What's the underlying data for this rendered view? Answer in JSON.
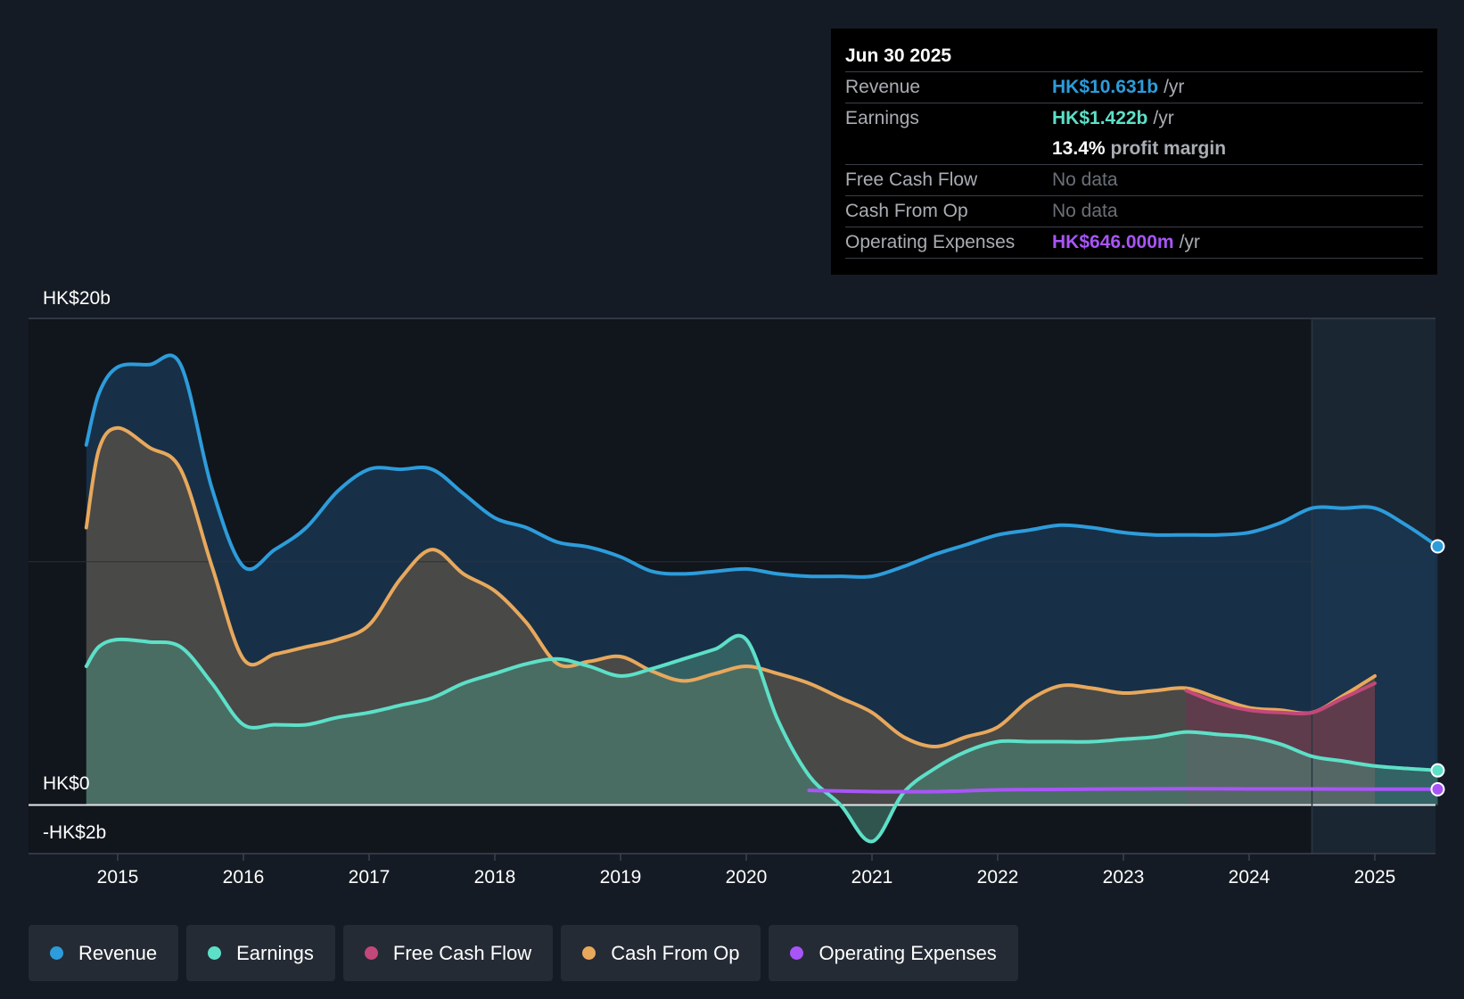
{
  "chart_data": {
    "type": "area",
    "title": "",
    "y_unit": "HK$ billions",
    "ylim": [
      -2,
      20
    ],
    "y_tick_labels": [
      "HK$20b",
      "HK$0",
      "-HK$2b"
    ],
    "x_tick_labels": [
      "2015",
      "2016",
      "2017",
      "2018",
      "2019",
      "2020",
      "2021",
      "2022",
      "2023",
      "2024",
      "2025"
    ],
    "forecast_start": 2024.5,
    "series": [
      {
        "name": "Revenue",
        "color": "#2d9cdb",
        "x": [
          2014.75,
          2014.85,
          2015.0,
          2015.25,
          2015.5,
          2015.75,
          2016.0,
          2016.25,
          2016.5,
          2016.75,
          2017.0,
          2017.25,
          2017.5,
          2017.75,
          2018.0,
          2018.25,
          2018.5,
          2018.75,
          2019.0,
          2019.25,
          2019.5,
          2019.75,
          2020.0,
          2020.25,
          2020.5,
          2020.75,
          2021.0,
          2021.25,
          2021.5,
          2021.75,
          2022.0,
          2022.25,
          2022.5,
          2022.75,
          2023.0,
          2023.25,
          2023.5,
          2023.75,
          2024.0,
          2024.25,
          2024.5,
          2024.75,
          2025.0,
          2025.25,
          2025.5
        ],
        "values": [
          14.8,
          16.9,
          18.0,
          18.1,
          18.1,
          13.0,
          9.8,
          10.5,
          11.4,
          12.9,
          13.8,
          13.8,
          13.8,
          12.8,
          11.8,
          11.4,
          10.8,
          10.6,
          10.2,
          9.6,
          9.5,
          9.6,
          9.7,
          9.5,
          9.4,
          9.4,
          9.4,
          9.8,
          10.3,
          10.7,
          11.1,
          11.3,
          11.5,
          11.4,
          11.2,
          11.1,
          11.1,
          11.1,
          11.2,
          11.6,
          12.2,
          12.2,
          12.2,
          11.5,
          10.631
        ]
      },
      {
        "name": "Earnings",
        "color": "#5de0c8",
        "x": [
          2014.75,
          2014.85,
          2015.0,
          2015.25,
          2015.5,
          2015.75,
          2016.0,
          2016.25,
          2016.5,
          2016.75,
          2017.0,
          2017.25,
          2017.5,
          2017.75,
          2018.0,
          2018.25,
          2018.5,
          2018.75,
          2019.0,
          2019.25,
          2019.5,
          2019.75,
          2020.0,
          2020.25,
          2020.5,
          2020.75,
          2021.0,
          2021.25,
          2021.5,
          2021.75,
          2022.0,
          2022.25,
          2022.5,
          2022.75,
          2023.0,
          2023.25,
          2023.5,
          2023.75,
          2024.0,
          2024.25,
          2024.5,
          2024.75,
          2025.0,
          2025.25,
          2025.5
        ],
        "values": [
          5.7,
          6.5,
          6.8,
          6.7,
          6.5,
          5.0,
          3.3,
          3.3,
          3.3,
          3.6,
          3.8,
          4.1,
          4.4,
          5.0,
          5.4,
          5.8,
          6.0,
          5.7,
          5.3,
          5.6,
          6.0,
          6.4,
          6.8,
          3.5,
          1.2,
          0.0,
          -1.5,
          0.5,
          1.5,
          2.2,
          2.6,
          2.6,
          2.6,
          2.6,
          2.7,
          2.8,
          3.0,
          2.9,
          2.8,
          2.5,
          2.0,
          1.8,
          1.6,
          1.5,
          1.422
        ]
      },
      {
        "name": "Free Cash Flow",
        "color": "#c2487a",
        "x": [
          2023.5,
          2023.75,
          2024.0,
          2024.25,
          2024.5,
          2024.75,
          2025.0
        ],
        "values": [
          4.7,
          4.2,
          3.9,
          3.8,
          3.8,
          4.4,
          5.0
        ]
      },
      {
        "name": "Cash From Op",
        "color": "#e8a85c",
        "x": [
          2014.75,
          2014.85,
          2015.0,
          2015.25,
          2015.5,
          2015.75,
          2016.0,
          2016.25,
          2016.5,
          2016.75,
          2017.0,
          2017.25,
          2017.5,
          2017.75,
          2018.0,
          2018.25,
          2018.5,
          2018.75,
          2019.0,
          2019.25,
          2019.5,
          2019.75,
          2020.0,
          2020.25,
          2020.5,
          2020.75,
          2021.0,
          2021.25,
          2021.5,
          2021.75,
          2022.0,
          2022.25,
          2022.5,
          2022.75,
          2023.0,
          2023.25,
          2023.5,
          2023.75,
          2024.0,
          2024.25,
          2024.5,
          2024.75,
          2025.0
        ],
        "values": [
          11.4,
          14.6,
          15.5,
          14.7,
          13.8,
          9.8,
          6.0,
          6.2,
          6.5,
          6.8,
          7.4,
          9.3,
          10.5,
          9.5,
          8.8,
          7.5,
          5.8,
          5.9,
          6.1,
          5.5,
          5.1,
          5.4,
          5.7,
          5.4,
          5.0,
          4.4,
          3.8,
          2.8,
          2.4,
          2.8,
          3.2,
          4.3,
          4.9,
          4.8,
          4.6,
          4.7,
          4.8,
          4.4,
          4.0,
          3.9,
          3.8,
          4.5,
          5.3
        ]
      },
      {
        "name": "Operating Expenses",
        "color": "#a855f7",
        "x": [
          2020.5,
          2021.0,
          2021.5,
          2022.0,
          2022.5,
          2023.0,
          2023.5,
          2024.0,
          2024.5,
          2025.0,
          2025.5
        ],
        "values": [
          0.6,
          0.55,
          0.55,
          0.62,
          0.64,
          0.66,
          0.67,
          0.66,
          0.66,
          0.65,
          0.646
        ]
      }
    ]
  },
  "tooltip": {
    "date": "Jun 30 2025",
    "revenue_label": "Revenue",
    "revenue_value": "HK$10.631b",
    "revenue_unit": "/yr",
    "earnings_label": "Earnings",
    "earnings_value": "HK$1.422b",
    "earnings_unit": "/yr",
    "margin_value": "13.4%",
    "margin_text": "profit margin",
    "fcf_label": "Free Cash Flow",
    "fcf_value": "No data",
    "cfo_label": "Cash From Op",
    "cfo_value": "No data",
    "opex_label": "Operating Expenses",
    "opex_value": "HK$646.000m",
    "opex_unit": "/yr"
  },
  "legend": [
    "Revenue",
    "Earnings",
    "Free Cash Flow",
    "Cash From Op",
    "Operating Expenses"
  ],
  "colors": {
    "revenue": "#2d9cdb",
    "earnings": "#5de0c8",
    "fcf": "#c2487a",
    "cfo": "#e8a85c",
    "opex": "#a855f7"
  }
}
